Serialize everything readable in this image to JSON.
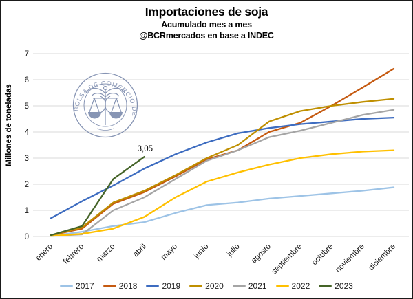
{
  "title": "Importaciones de soja",
  "subtitle1": "Acumulado mes a mes",
  "subtitle2": "@BCRmercados en base a INDEC",
  "y_axis_title": "Millones de toneladas",
  "annotation": {
    "text": "3,05",
    "series": "2023",
    "month_index": 3,
    "value": 3.05
  },
  "watermark": {
    "text": "BOLSA DE COMERCIO DE ROSARIO",
    "color": "#6A7BA2"
  },
  "colors": {
    "grid": "#D9D9D9",
    "tick_text": "#1a1a1a",
    "background": "#FFFFFF"
  },
  "chart_data": {
    "type": "line",
    "title": "Importaciones de soja",
    "xlabel": "",
    "ylabel": "Millones de toneladas",
    "ylim": [
      0,
      7
    ],
    "yticks": [
      0,
      1,
      2,
      3,
      4,
      5,
      6,
      7
    ],
    "grid": "horizontal",
    "legend_position": "bottom",
    "categories": [
      "enero",
      "febrero",
      "marzo",
      "abril",
      "mayo",
      "junio",
      "julio",
      "agosto",
      "septiembre",
      "octubre",
      "noviembre",
      "diciembre"
    ],
    "series": [
      {
        "name": "2017",
        "color": "#9DC3E6",
        "values": [
          0.02,
          0.18,
          0.4,
          0.55,
          0.9,
          1.2,
          1.3,
          1.45,
          1.55,
          1.65,
          1.75,
          1.88
        ]
      },
      {
        "name": "2018",
        "color": "#C55A11",
        "values": [
          0.05,
          0.3,
          1.25,
          1.7,
          2.3,
          2.95,
          3.3,
          4.0,
          4.35,
          5.0,
          5.7,
          6.42
        ]
      },
      {
        "name": "2019",
        "color": "#3D6CC0",
        "values": [
          0.7,
          1.35,
          1.95,
          2.6,
          3.15,
          3.6,
          3.95,
          4.15,
          4.3,
          4.4,
          4.5,
          4.55
        ]
      },
      {
        "name": "2020",
        "color": "#BF8F00",
        "values": [
          0.05,
          0.35,
          1.3,
          1.75,
          2.35,
          3.0,
          3.5,
          4.4,
          4.8,
          5.0,
          5.15,
          5.27
        ]
      },
      {
        "name": "2021",
        "color": "#A5A5A5",
        "values": [
          0.02,
          0.08,
          1.0,
          1.5,
          2.2,
          2.9,
          3.3,
          3.8,
          4.05,
          4.35,
          4.65,
          4.85
        ]
      },
      {
        "name": "2022",
        "color": "#FFC000",
        "values": [
          0.02,
          0.1,
          0.3,
          0.75,
          1.5,
          2.1,
          2.45,
          2.75,
          3.0,
          3.15,
          3.25,
          3.3
        ]
      },
      {
        "name": "2023",
        "color": "#456428",
        "values": [
          0.05,
          0.4,
          2.2,
          3.05
        ]
      }
    ]
  }
}
